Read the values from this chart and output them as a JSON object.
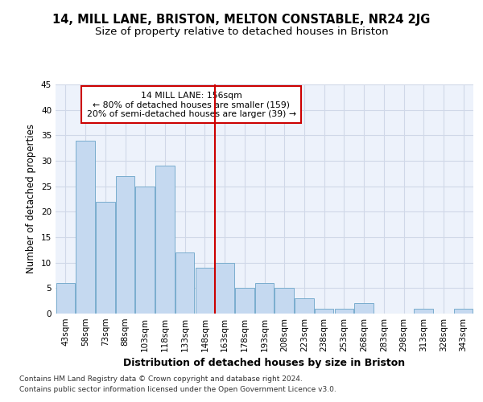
{
  "title1": "14, MILL LANE, BRISTON, MELTON CONSTABLE, NR24 2JG",
  "title2": "Size of property relative to detached houses in Briston",
  "xlabel": "Distribution of detached houses by size in Briston",
  "ylabel": "Number of detached properties",
  "categories": [
    "43sqm",
    "58sqm",
    "73sqm",
    "88sqm",
    "103sqm",
    "118sqm",
    "133sqm",
    "148sqm",
    "163sqm",
    "178sqm",
    "193sqm",
    "208sqm",
    "223sqm",
    "238sqm",
    "253sqm",
    "268sqm",
    "283sqm",
    "298sqm",
    "313sqm",
    "328sqm",
    "343sqm"
  ],
  "values": [
    6,
    34,
    22,
    27,
    25,
    29,
    12,
    9,
    10,
    5,
    6,
    5,
    3,
    1,
    1,
    2,
    0,
    0,
    1,
    0,
    1
  ],
  "bar_color": "#c5d9f0",
  "bar_edge_color": "#7aadce",
  "grid_color": "#d0d8e8",
  "background_color": "#edf2fb",
  "vline_x": 7.5,
  "vline_color": "#cc0000",
  "annotation_text": "14 MILL LANE: 156sqm\n← 80% of detached houses are smaller (159)\n20% of semi-detached houses are larger (39) →",
  "annotation_box_color": "#ffffff",
  "annotation_edge_color": "#cc0000",
  "ylim": [
    0,
    45
  ],
  "yticks": [
    0,
    5,
    10,
    15,
    20,
    25,
    30,
    35,
    40,
    45
  ],
  "footer1": "Contains HM Land Registry data © Crown copyright and database right 2024.",
  "footer2": "Contains public sector information licensed under the Open Government Licence v3.0.",
  "title1_fontsize": 10.5,
  "title2_fontsize": 9.5,
  "ylabel_fontsize": 8.5,
  "xlabel_fontsize": 9,
  "tick_fontsize": 7.5,
  "footer_fontsize": 6.5
}
